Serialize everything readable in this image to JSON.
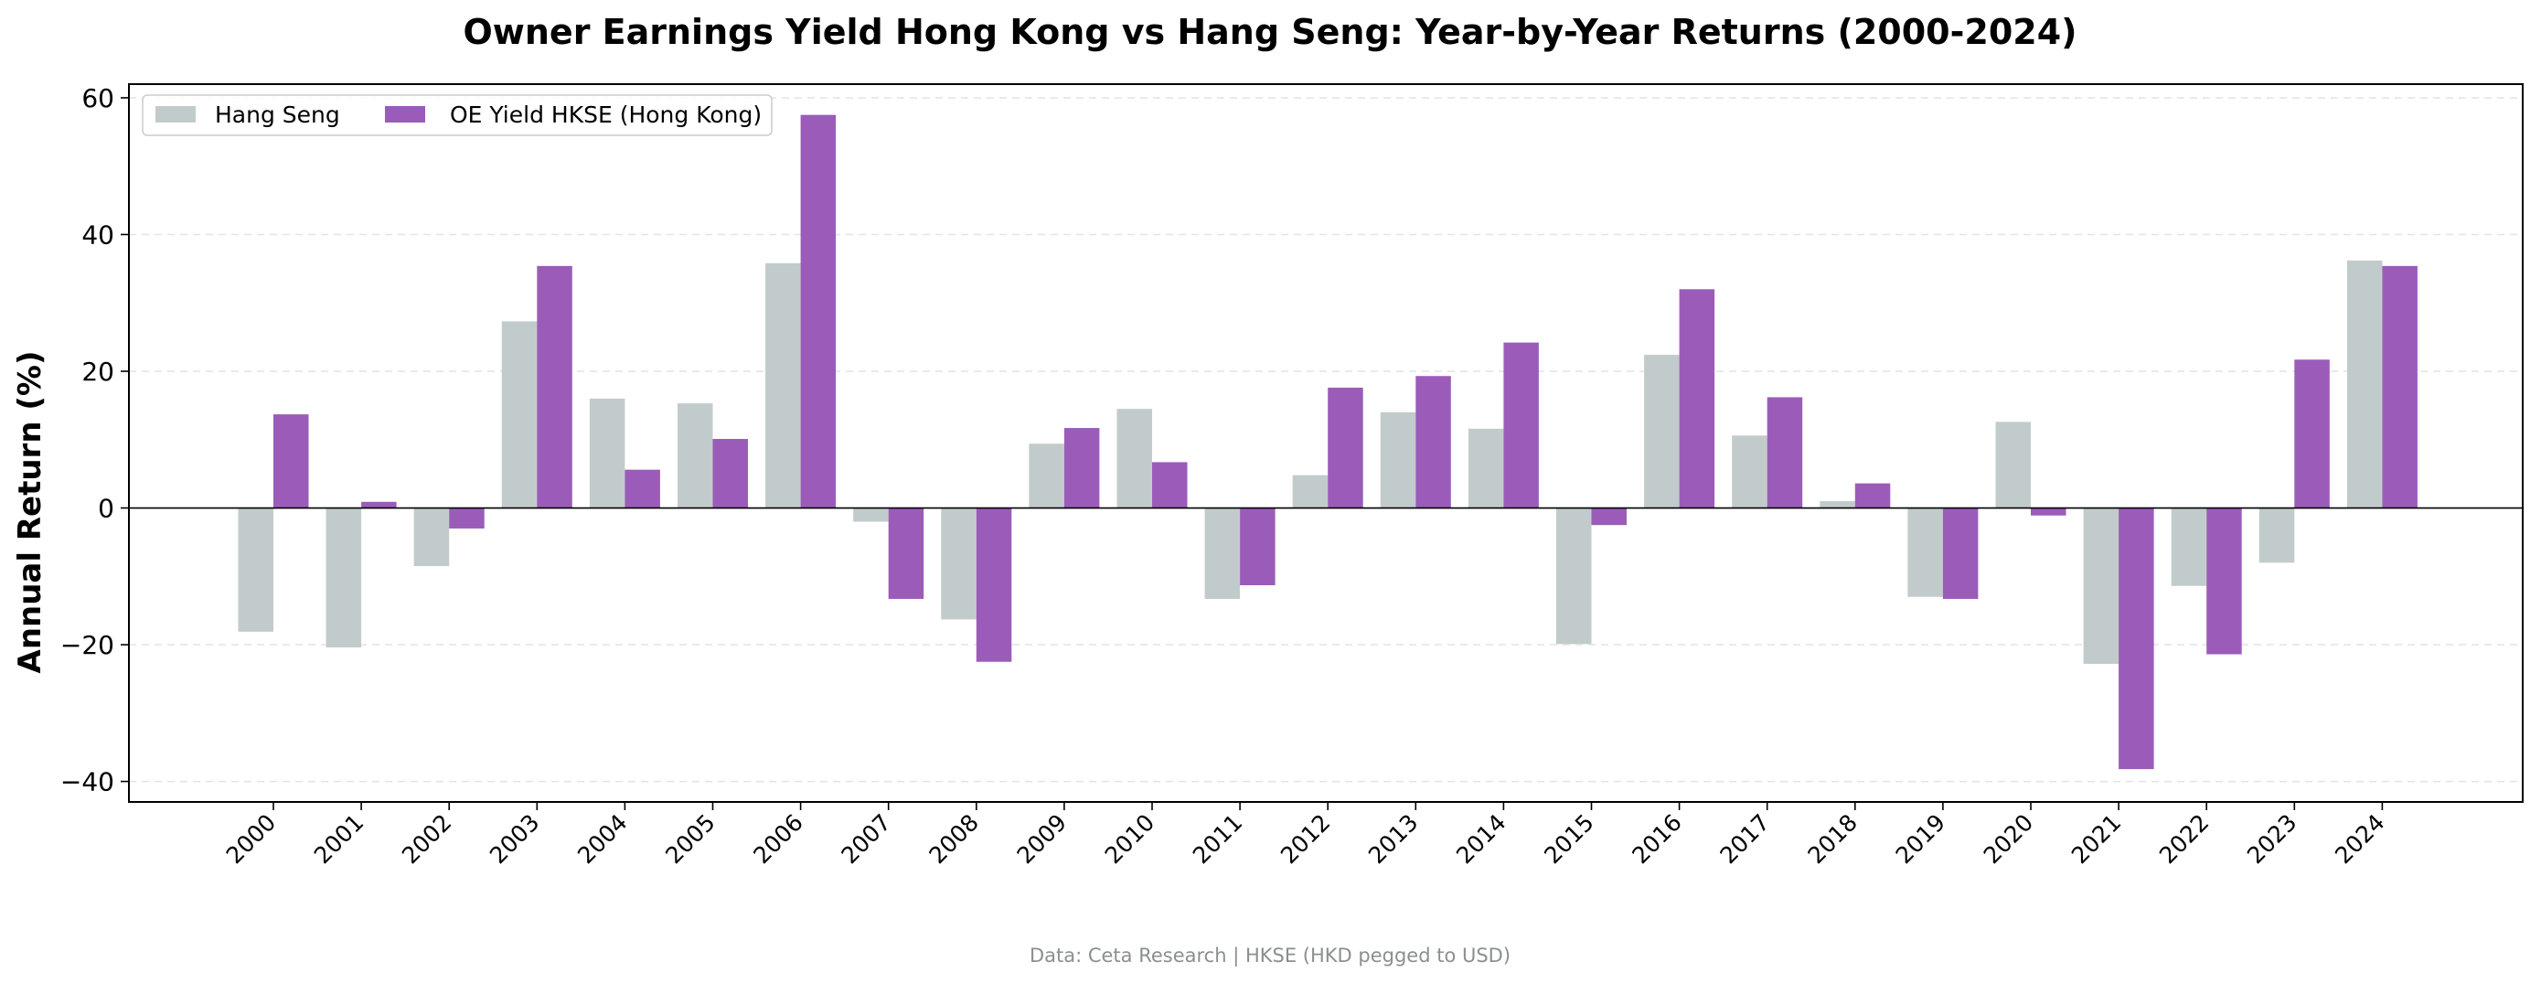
{
  "chart_data": {
    "type": "bar",
    "title": "Owner Earnings Yield Hong Kong vs Hang Seng: Year-by-Year Returns (2000-2024)",
    "xlabel": "",
    "ylabel": "Annual Return (%)",
    "ylim": [
      -43,
      62
    ],
    "yticks": [
      60,
      40,
      20,
      0,
      -20,
      -40
    ],
    "ytick_labels": [
      "60",
      "40",
      "20",
      "0",
      "−20",
      "−40"
    ],
    "grid": "horizontal dashed",
    "legend_position": "top-left",
    "categories": [
      "2000",
      "2001",
      "2002",
      "2003",
      "2004",
      "2005",
      "2006",
      "2007",
      "2008",
      "2009",
      "2010",
      "2011",
      "2012",
      "2013",
      "2014",
      "2015",
      "2016",
      "2017",
      "2018",
      "2019",
      "2020",
      "2021",
      "2022",
      "2023",
      "2024"
    ],
    "series": [
      {
        "name": "Hang Seng",
        "color": "#c2cbcb",
        "values": [
          -18.1,
          -20.4,
          -8.5,
          27.3,
          16.0,
          15.3,
          35.8,
          -2.0,
          -16.3,
          9.4,
          14.5,
          -13.3,
          4.8,
          14.0,
          11.6,
          -19.9,
          22.4,
          10.6,
          1.0,
          -13.0,
          12.6,
          -22.8,
          -11.4,
          -8.0,
          36.2
        ]
      },
      {
        "name": "OE Yield HKSE (Hong Kong)",
        "color": "#9b5cb9",
        "values": [
          13.7,
          0.9,
          -3.0,
          35.4,
          5.6,
          10.1,
          57.5,
          -13.3,
          -22.5,
          11.7,
          6.7,
          -11.3,
          17.6,
          19.3,
          24.2,
          -2.5,
          32.0,
          16.2,
          3.6,
          -13.3,
          -1.1,
          -38.2,
          -21.4,
          21.7,
          35.4
        ]
      }
    ],
    "footer": "Data: Ceta Research | HKSE (HKD pegged to USD)"
  }
}
